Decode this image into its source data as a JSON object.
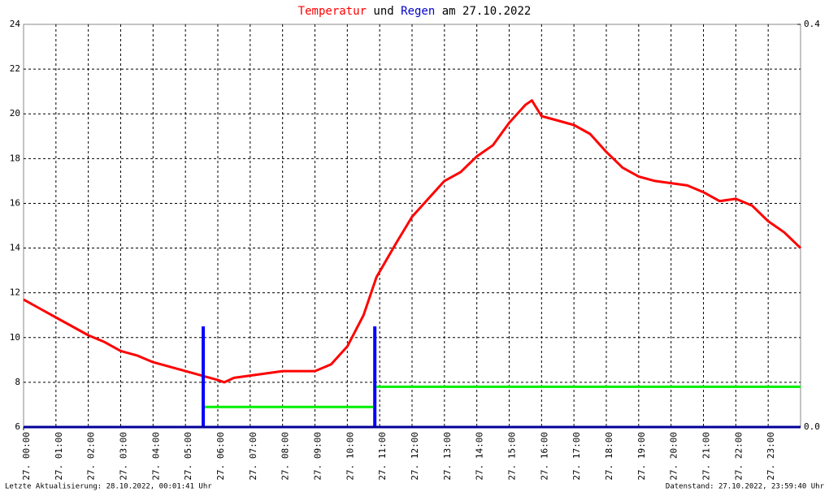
{
  "chart_data": {
    "type": "line",
    "title": [
      "Temperatur",
      "und",
      "Regen",
      "am 27.10.2022"
    ],
    "footer_left": "Letzte Aktualisierung: 28.10.2022, 00:01:41 Uhr",
    "footer_right": "Datenstand: 27.10.2022, 23:59:40 Uhr",
    "xlim": [
      0,
      24
    ],
    "xticks": [
      {
        "value": 0,
        "label": "27. 00:00"
      },
      {
        "value": 1,
        "label": "27. 01:00"
      },
      {
        "value": 2,
        "label": "27. 02:00"
      },
      {
        "value": 3,
        "label": "27. 03:00"
      },
      {
        "value": 4,
        "label": "27. 04:00"
      },
      {
        "value": 5,
        "label": "27. 05:00"
      },
      {
        "value": 6,
        "label": "27. 06:00"
      },
      {
        "value": 7,
        "label": "27. 07:00"
      },
      {
        "value": 8,
        "label": "27. 08:00"
      },
      {
        "value": 9,
        "label": "27. 09:00"
      },
      {
        "value": 10,
        "label": "27. 10:00"
      },
      {
        "value": 11,
        "label": "27. 11:00"
      },
      {
        "value": 12,
        "label": "27. 12:00"
      },
      {
        "value": 13,
        "label": "27. 13:00"
      },
      {
        "value": 14,
        "label": "27. 14:00"
      },
      {
        "value": 15,
        "label": "27. 15:00"
      },
      {
        "value": 16,
        "label": "27. 16:00"
      },
      {
        "value": 17,
        "label": "27. 17:00"
      },
      {
        "value": 18,
        "label": "27. 18:00"
      },
      {
        "value": 19,
        "label": "27. 19:00"
      },
      {
        "value": 20,
        "label": "27. 20:00"
      },
      {
        "value": 21,
        "label": "27. 21:00"
      },
      {
        "value": 22,
        "label": "27. 22:00"
      },
      {
        "value": 23,
        "label": "27. 23:00"
      }
    ],
    "ylim": [
      6,
      24
    ],
    "yticks": [
      6,
      8,
      10,
      12,
      14,
      16,
      18,
      20,
      22,
      24
    ],
    "y2lim": [
      0,
      0.4
    ],
    "y2ticks": [
      {
        "value": 0,
        "label": "0.0"
      },
      {
        "value": 0.4,
        "label": "0.4"
      }
    ],
    "grid": true,
    "series": [
      {
        "type": "line",
        "color": "#ff0000",
        "x": [
          0,
          0.5,
          1,
          1.5,
          2,
          2.5,
          3,
          3.5,
          4,
          4.5,
          5,
          5.5,
          6,
          6.2,
          6.5,
          7,
          7.5,
          8,
          8.5,
          9,
          9.5,
          10,
          10.5,
          10.9,
          11.5,
          12,
          12.5,
          13,
          13.5,
          14,
          14.5,
          15,
          15.5,
          15.7,
          16,
          16.5,
          17,
          17.5,
          18,
          18.5,
          19,
          19.5,
          20,
          20.5,
          21,
          21.5,
          22,
          22.5,
          23,
          23.5,
          24
        ],
        "values": [
          11.7,
          11.3,
          10.9,
          10.5,
          10.1,
          9.8,
          9.4,
          9.2,
          8.9,
          8.7,
          8.5,
          8.3,
          8.1,
          8.0,
          8.2,
          8.3,
          8.4,
          8.5,
          8.5,
          8.5,
          8.8,
          9.6,
          11.0,
          12.7,
          14.2,
          15.4,
          16.2,
          17.0,
          17.4,
          18.1,
          18.6,
          19.6,
          20.4,
          20.6,
          19.9,
          19.7,
          19.5,
          19.1,
          18.3,
          17.6,
          17.2,
          17.0,
          16.9,
          16.8,
          16.5,
          16.1,
          16.2,
          15.9,
          15.2,
          14.7,
          14.0
        ]
      },
      {
        "type": "bar",
        "axis": "y2",
        "color": "#0000ff",
        "x": [
          5.55,
          10.85
        ],
        "values": [
          0.1,
          0.1
        ]
      },
      {
        "type": "line",
        "axis": "y2",
        "color": "#00ee00",
        "x": [
          5.6,
          10.8,
          10.8,
          10.9,
          24
        ],
        "values": [
          0.02,
          0.02,
          null,
          0.04,
          0.04
        ]
      }
    ]
  }
}
